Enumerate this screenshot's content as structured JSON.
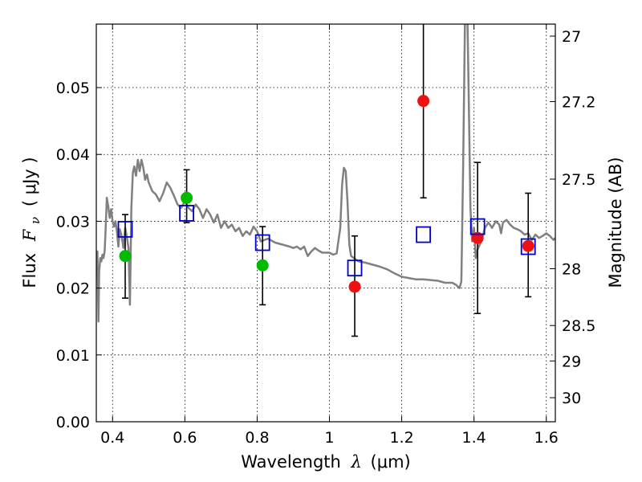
{
  "chart_data": {
    "type": "scatter",
    "xlabel_prefix": "Wavelength",
    "xlabel_symbol": "λ",
    "xlabel_unit": "(μm)",
    "ylabel_prefix": "Flux",
    "ylabel_symbol": "F",
    "ylabel_subscript": "ν",
    "ylabel_unit": "( μJy )",
    "y2label": "Magnitude (AB)",
    "xlim": [
      0.355,
      1.625
    ],
    "ylim": [
      0.0,
      0.0595
    ],
    "grid": true,
    "xticks": [
      {
        "value": 0.4,
        "label": "0.4"
      },
      {
        "value": 0.6,
        "label": "0.6"
      },
      {
        "value": 0.8,
        "label": "0.8"
      },
      {
        "value": 1.0,
        "label": "1"
      },
      {
        "value": 1.2,
        "label": "1.2"
      },
      {
        "value": 1.4,
        "label": "1.4"
      },
      {
        "value": 1.6,
        "label": "1.6"
      }
    ],
    "yticks": [
      {
        "value": 0.0,
        "label": "0.00"
      },
      {
        "value": 0.01,
        "label": "0.01"
      },
      {
        "value": 0.02,
        "label": "0.02"
      },
      {
        "value": 0.03,
        "label": "0.03"
      },
      {
        "value": 0.04,
        "label": "0.04"
      },
      {
        "value": 0.05,
        "label": "0.05"
      }
    ],
    "y2ticks": [
      {
        "flux": 0.0577,
        "label": "27"
      },
      {
        "flux": 0.0479,
        "label": "27.2"
      },
      {
        "flux": 0.0363,
        "label": "27.5"
      },
      {
        "flux": 0.0229,
        "label": "28"
      },
      {
        "flux": 0.0144,
        "label": "28.5"
      },
      {
        "flux": 0.0091,
        "label": "29"
      },
      {
        "flux": 0.0036,
        "label": "30"
      }
    ],
    "series": [
      {
        "name": "model_spectrum",
        "kind": "line",
        "color": "#808080",
        "points": [
          [
            0.355,
            0.0235
          ],
          [
            0.358,
            0.0255
          ],
          [
            0.361,
            0.015
          ],
          [
            0.363,
            0.0225
          ],
          [
            0.366,
            0.0245
          ],
          [
            0.369,
            0.024
          ],
          [
            0.372,
            0.025
          ],
          [
            0.375,
            0.0245
          ],
          [
            0.378,
            0.0255
          ],
          [
            0.381,
            0.029
          ],
          [
            0.384,
            0.0335
          ],
          [
            0.388,
            0.0322
          ],
          [
            0.392,
            0.0305
          ],
          [
            0.396,
            0.0318
          ],
          [
            0.4,
            0.03
          ],
          [
            0.404,
            0.0292
          ],
          [
            0.408,
            0.03
          ],
          [
            0.412,
            0.0285
          ],
          [
            0.416,
            0.0262
          ],
          [
            0.42,
            0.0288
          ],
          [
            0.425,
            0.0278
          ],
          [
            0.43,
            0.026
          ],
          [
            0.435,
            0.029
          ],
          [
            0.44,
            0.0275
          ],
          [
            0.444,
            0.026
          ],
          [
            0.448,
            0.0175
          ],
          [
            0.452,
            0.032
          ],
          [
            0.456,
            0.0372
          ],
          [
            0.46,
            0.0382
          ],
          [
            0.465,
            0.0368
          ],
          [
            0.47,
            0.0392
          ],
          [
            0.475,
            0.0375
          ],
          [
            0.48,
            0.0392
          ],
          [
            0.485,
            0.038
          ],
          [
            0.49,
            0.0362
          ],
          [
            0.495,
            0.037
          ],
          [
            0.5,
            0.0358
          ],
          [
            0.51,
            0.0345
          ],
          [
            0.52,
            0.034
          ],
          [
            0.53,
            0.033
          ],
          [
            0.54,
            0.0342
          ],
          [
            0.55,
            0.0358
          ],
          [
            0.56,
            0.035
          ],
          [
            0.57,
            0.0338
          ],
          [
            0.58,
            0.0325
          ],
          [
            0.59,
            0.032
          ],
          [
            0.6,
            0.033
          ],
          [
            0.61,
            0.032
          ],
          [
            0.62,
            0.0315
          ],
          [
            0.63,
            0.0325
          ],
          [
            0.64,
            0.0318
          ],
          [
            0.65,
            0.0305
          ],
          [
            0.66,
            0.0318
          ],
          [
            0.67,
            0.031
          ],
          [
            0.68,
            0.0298
          ],
          [
            0.69,
            0.031
          ],
          [
            0.7,
            0.029
          ],
          [
            0.71,
            0.03
          ],
          [
            0.72,
            0.029
          ],
          [
            0.73,
            0.0295
          ],
          [
            0.74,
            0.0285
          ],
          [
            0.75,
            0.029
          ],
          [
            0.76,
            0.0278
          ],
          [
            0.77,
            0.0285
          ],
          [
            0.78,
            0.028
          ],
          [
            0.79,
            0.0292
          ],
          [
            0.8,
            0.0285
          ],
          [
            0.81,
            0.027
          ],
          [
            0.83,
            0.0274
          ],
          [
            0.85,
            0.0268
          ],
          [
            0.87,
            0.0265
          ],
          [
            0.89,
            0.0262
          ],
          [
            0.9,
            0.026
          ],
          [
            0.91,
            0.0262
          ],
          [
            0.92,
            0.0258
          ],
          [
            0.93,
            0.0262
          ],
          [
            0.94,
            0.0248
          ],
          [
            0.95,
            0.0255
          ],
          [
            0.96,
            0.026
          ],
          [
            0.97,
            0.0256
          ],
          [
            0.98,
            0.0253
          ],
          [
            1.0,
            0.0253
          ],
          [
            1.01,
            0.025
          ],
          [
            1.02,
            0.0252
          ],
          [
            1.03,
            0.029
          ],
          [
            1.035,
            0.0355
          ],
          [
            1.04,
            0.038
          ],
          [
            1.045,
            0.0375
          ],
          [
            1.05,
            0.033
          ],
          [
            1.055,
            0.0265
          ],
          [
            1.06,
            0.0248
          ],
          [
            1.08,
            0.024
          ],
          [
            1.1,
            0.0238
          ],
          [
            1.12,
            0.0235
          ],
          [
            1.14,
            0.0232
          ],
          [
            1.16,
            0.0228
          ],
          [
            1.18,
            0.0222
          ],
          [
            1.2,
            0.0217
          ],
          [
            1.22,
            0.0215
          ],
          [
            1.24,
            0.0213
          ],
          [
            1.26,
            0.0213
          ],
          [
            1.28,
            0.0212
          ],
          [
            1.3,
            0.0211
          ],
          [
            1.32,
            0.0208
          ],
          [
            1.34,
            0.0208
          ],
          [
            1.35,
            0.0205
          ],
          [
            1.36,
            0.02
          ],
          [
            1.365,
            0.021
          ],
          [
            1.37,
            0.038
          ],
          [
            1.375,
            0.06
          ],
          [
            1.382,
            0.0595
          ],
          [
            1.385,
            0.05
          ],
          [
            1.39,
            0.032
          ],
          [
            1.395,
            0.027
          ],
          [
            1.4,
            0.029
          ],
          [
            1.405,
            0.0245
          ],
          [
            1.41,
            0.0258
          ],
          [
            1.42,
            0.027
          ],
          [
            1.43,
            0.029
          ],
          [
            1.44,
            0.0298
          ],
          [
            1.45,
            0.029
          ],
          [
            1.46,
            0.03
          ],
          [
            1.47,
            0.0295
          ],
          [
            1.475,
            0.0282
          ],
          [
            1.48,
            0.0298
          ],
          [
            1.49,
            0.0302
          ],
          [
            1.5,
            0.0295
          ],
          [
            1.51,
            0.029
          ],
          [
            1.52,
            0.0288
          ],
          [
            1.53,
            0.0285
          ],
          [
            1.54,
            0.028
          ],
          [
            1.55,
            0.0282
          ],
          [
            1.56,
            0.0272
          ],
          [
            1.57,
            0.028
          ],
          [
            1.58,
            0.0275
          ],
          [
            1.59,
            0.0278
          ],
          [
            1.6,
            0.0282
          ],
          [
            1.61,
            0.0278
          ],
          [
            1.62,
            0.0272
          ],
          [
            1.625,
            0.0275
          ]
        ]
      },
      {
        "name": "green_detections",
        "kind": "circle",
        "color": "#00bb00",
        "points": [
          [
            0.435,
            0.0248
          ],
          [
            0.605,
            0.0335
          ],
          [
            0.815,
            0.0234
          ]
        ]
      },
      {
        "name": "red_detections",
        "kind": "circle",
        "color": "#ee1111",
        "points": [
          [
            1.07,
            0.0202
          ],
          [
            1.26,
            0.048
          ],
          [
            1.41,
            0.0275
          ],
          [
            1.55,
            0.0263
          ]
        ]
      },
      {
        "name": "model_photometry",
        "kind": "square",
        "color": "#0000cc",
        "points": [
          [
            0.435,
            0.0288
          ],
          [
            0.605,
            0.0312
          ],
          [
            0.815,
            0.0268
          ],
          [
            1.07,
            0.023
          ],
          [
            1.26,
            0.028
          ],
          [
            1.41,
            0.0292
          ],
          [
            1.55,
            0.0262
          ]
        ]
      },
      {
        "name": "error_bars",
        "kind": "errorbar",
        "color": "#000000",
        "points": [
          {
            "x": 0.435,
            "low": 0.0185,
            "high": 0.031
          },
          {
            "x": 0.605,
            "low": 0.0298,
            "high": 0.0377
          },
          {
            "x": 0.815,
            "low": 0.0175,
            "high": 0.0292
          },
          {
            "x": 1.07,
            "low": 0.0128,
            "high": 0.0278
          },
          {
            "x": 1.26,
            "low": 0.0335,
            "high": 0.06
          },
          {
            "x": 1.41,
            "low": 0.0162,
            "high": 0.0388
          },
          {
            "x": 1.55,
            "low": 0.0187,
            "high": 0.0342
          }
        ]
      }
    ]
  }
}
